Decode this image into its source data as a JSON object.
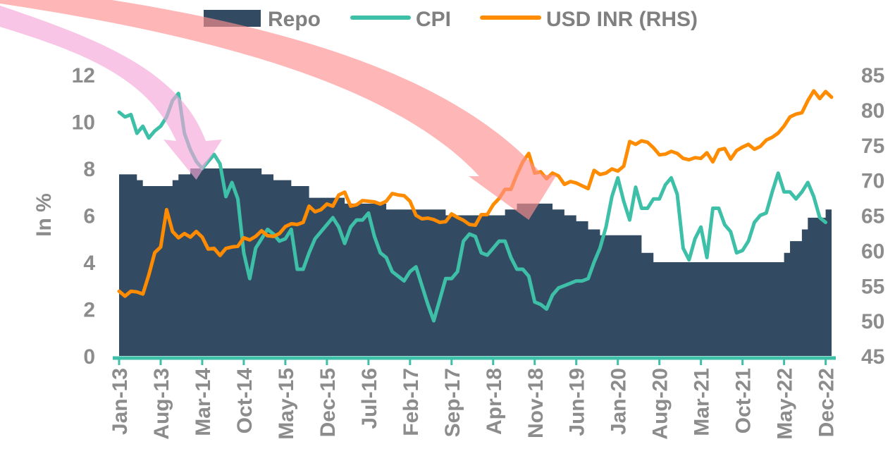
{
  "chart_data": {
    "type": "area+line",
    "legend": {
      "placement": "top-center",
      "items": [
        {
          "key": "repo",
          "label": "Repo"
        },
        {
          "key": "cpi",
          "label": "CPI"
        },
        {
          "key": "usdinr",
          "label": "USD INR (RHS)"
        }
      ]
    },
    "ylabel": "In %",
    "y_left": {
      "min": 0,
      "max": 12,
      "ticks": [
        "0",
        "2",
        "4",
        "6",
        "8",
        "10",
        "12"
      ]
    },
    "y_right": {
      "min": 45,
      "max": 85,
      "ticks": [
        "45",
        "50",
        "55",
        "60",
        "65",
        "70",
        "75",
        "80",
        "85"
      ]
    },
    "x_ticks": [
      {
        "label": "Jan-13",
        "index": 0
      },
      {
        "label": "Aug-13",
        "index": 7
      },
      {
        "label": "Mar-14",
        "index": 14
      },
      {
        "label": "Oct-14",
        "index": 21
      },
      {
        "label": "May-15",
        "index": 28
      },
      {
        "label": "Dec-15",
        "index": 35
      },
      {
        "label": "Jul-16",
        "index": 42
      },
      {
        "label": "Feb-17",
        "index": 49
      },
      {
        "label": "Sep-17",
        "index": 56
      },
      {
        "label": "Apr-18",
        "index": 63
      },
      {
        "label": "Nov-18",
        "index": 70
      },
      {
        "label": "Jun-19",
        "index": 77
      },
      {
        "label": "Jan-20",
        "index": 84
      },
      {
        "label": "Aug-20",
        "index": 91
      },
      {
        "label": "Mar-21",
        "index": 98
      },
      {
        "label": "Oct-21",
        "index": 105
      },
      {
        "label": "May-22",
        "index": 112
      },
      {
        "label": "Dec-22",
        "index": 119
      }
    ],
    "series": [
      {
        "name": "Repo",
        "key": "repo",
        "axis": "left",
        "kind": "step-area",
        "breakpoints": [
          [
            0,
            7.75
          ],
          [
            3,
            7.5
          ],
          [
            4,
            7.25
          ],
          [
            9,
            7.5
          ],
          [
            10,
            7.75
          ],
          [
            12,
            8.0
          ],
          [
            24,
            7.75
          ],
          [
            26,
            7.5
          ],
          [
            29,
            7.25
          ],
          [
            32,
            6.75
          ],
          [
            38,
            6.5
          ],
          [
            45,
            6.25
          ],
          [
            55,
            6.0
          ],
          [
            65,
            6.25
          ],
          [
            67,
            6.5
          ],
          [
            73,
            6.25
          ],
          [
            75,
            6.0
          ],
          [
            77,
            5.75
          ],
          [
            79,
            5.4
          ],
          [
            81,
            5.15
          ],
          [
            88,
            4.4
          ],
          [
            90,
            4.0
          ],
          [
            112,
            4.4
          ],
          [
            113,
            4.9
          ],
          [
            115,
            5.4
          ],
          [
            116,
            5.9
          ],
          [
            119,
            6.25
          ],
          [
            120,
            6.25
          ]
        ]
      },
      {
        "name": "CPI",
        "key": "cpi",
        "axis": "left",
        "anchors": [
          [
            0,
            10.4
          ],
          [
            1,
            10.2
          ],
          [
            2,
            10.3
          ],
          [
            3,
            9.5
          ],
          [
            4,
            9.8
          ],
          [
            5,
            9.3
          ],
          [
            6,
            9.6
          ],
          [
            7,
            9.8
          ],
          [
            8,
            10.2
          ],
          [
            9,
            10.9
          ],
          [
            10,
            11.2
          ],
          [
            11,
            9.5
          ],
          [
            12,
            8.8
          ],
          [
            13,
            8.3
          ],
          [
            14,
            8.0
          ],
          [
            15,
            8.3
          ],
          [
            16,
            8.6
          ],
          [
            17,
            8.2
          ],
          [
            18,
            6.8
          ],
          [
            19,
            7.4
          ],
          [
            20,
            6.7
          ],
          [
            21,
            4.4
          ],
          [
            22,
            3.3
          ],
          [
            23,
            4.6
          ],
          [
            24,
            5.0
          ],
          [
            25,
            5.4
          ],
          [
            26,
            5.2
          ],
          [
            27,
            4.9
          ],
          [
            28,
            5.0
          ],
          [
            29,
            5.4
          ],
          [
            30,
            3.7
          ],
          [
            31,
            3.7
          ],
          [
            32,
            4.4
          ],
          [
            33,
            5.0
          ],
          [
            34,
            5.3
          ],
          [
            35,
            5.6
          ],
          [
            36,
            5.9
          ],
          [
            37,
            5.5
          ],
          [
            38,
            4.8
          ],
          [
            39,
            5.5
          ],
          [
            40,
            5.8
          ],
          [
            41,
            5.8
          ],
          [
            42,
            6.1
          ],
          [
            43,
            5.1
          ],
          [
            44,
            4.4
          ],
          [
            45,
            4.2
          ],
          [
            46,
            3.6
          ],
          [
            47,
            3.4
          ],
          [
            48,
            3.2
          ],
          [
            49,
            3.6
          ],
          [
            50,
            3.8
          ],
          [
            51,
            3.0
          ],
          [
            52,
            2.2
          ],
          [
            53,
            1.5
          ],
          [
            54,
            2.4
          ],
          [
            55,
            3.3
          ],
          [
            56,
            3.3
          ],
          [
            57,
            3.6
          ],
          [
            58,
            4.9
          ],
          [
            59,
            5.2
          ],
          [
            60,
            5.1
          ],
          [
            61,
            4.4
          ],
          [
            62,
            4.3
          ],
          [
            63,
            4.6
          ],
          [
            64,
            4.9
          ],
          [
            65,
            4.9
          ],
          [
            66,
            4.2
          ],
          [
            67,
            3.7
          ],
          [
            68,
            3.7
          ],
          [
            69,
            3.4
          ],
          [
            70,
            2.3
          ],
          [
            71,
            2.2
          ],
          [
            72,
            2.0
          ],
          [
            73,
            2.6
          ],
          [
            74,
            2.9
          ],
          [
            75,
            3.0
          ],
          [
            76,
            3.1
          ],
          [
            77,
            3.2
          ],
          [
            78,
            3.2
          ],
          [
            79,
            3.3
          ],
          [
            80,
            4.0
          ],
          [
            81,
            4.6
          ],
          [
            82,
            5.5
          ],
          [
            83,
            6.8
          ],
          [
            84,
            7.6
          ],
          [
            85,
            6.6
          ],
          [
            86,
            5.8
          ],
          [
            87,
            7.2
          ],
          [
            88,
            6.3
          ],
          [
            89,
            6.3
          ],
          [
            90,
            6.7
          ],
          [
            91,
            6.7
          ],
          [
            92,
            7.3
          ],
          [
            93,
            7.6
          ],
          [
            94,
            6.9
          ],
          [
            95,
            4.6
          ],
          [
            96,
            4.1
          ],
          [
            97,
            5.0
          ],
          [
            98,
            5.5
          ],
          [
            99,
            4.2
          ],
          [
            100,
            6.3
          ],
          [
            101,
            6.3
          ],
          [
            102,
            5.6
          ],
          [
            103,
            5.3
          ],
          [
            104,
            4.4
          ],
          [
            105,
            4.5
          ],
          [
            106,
            4.9
          ],
          [
            107,
            5.7
          ],
          [
            108,
            6.0
          ],
          [
            109,
            6.1
          ],
          [
            110,
            7.0
          ],
          [
            111,
            7.8
          ],
          [
            112,
            7.0
          ],
          [
            113,
            7.0
          ],
          [
            114,
            6.7
          ],
          [
            115,
            7.0
          ],
          [
            116,
            7.4
          ],
          [
            117,
            6.8
          ],
          [
            118,
            5.9
          ],
          [
            119,
            5.7
          ]
        ]
      },
      {
        "name": "USD INR (RHS)",
        "key": "usdinr",
        "axis": "right",
        "anchors": [
          [
            0,
            54.2
          ],
          [
            1,
            53.5
          ],
          [
            2,
            54.2
          ],
          [
            3,
            54.1
          ],
          [
            4,
            53.8
          ],
          [
            5,
            56.5
          ],
          [
            6,
            59.7
          ],
          [
            7,
            60.5
          ],
          [
            8,
            65.8
          ],
          [
            9,
            62.7
          ],
          [
            10,
            61.8
          ],
          [
            11,
            62.4
          ],
          [
            12,
            61.9
          ],
          [
            13,
            62.7
          ],
          [
            14,
            61.9
          ],
          [
            15,
            60.2
          ],
          [
            16,
            60.3
          ],
          [
            17,
            59.3
          ],
          [
            18,
            60.3
          ],
          [
            19,
            60.5
          ],
          [
            20,
            60.6
          ],
          [
            21,
            61.8
          ],
          [
            22,
            61.5
          ],
          [
            23,
            62.0
          ],
          [
            24,
            62.8
          ],
          [
            25,
            62.1
          ],
          [
            26,
            62.0
          ],
          [
            27,
            62.4
          ],
          [
            28,
            63.4
          ],
          [
            29,
            63.8
          ],
          [
            30,
            63.7
          ],
          [
            31,
            64.0
          ],
          [
            32,
            66.3
          ],
          [
            33,
            65.5
          ],
          [
            34,
            65.8
          ],
          [
            35,
            66.6
          ],
          [
            36,
            66.3
          ],
          [
            37,
            67.9
          ],
          [
            38,
            68.3
          ],
          [
            39,
            66.3
          ],
          [
            40,
            66.5
          ],
          [
            41,
            67.1
          ],
          [
            42,
            67.0
          ],
          [
            43,
            66.9
          ],
          [
            44,
            66.6
          ],
          [
            45,
            67.0
          ],
          [
            46,
            68.1
          ],
          [
            47,
            67.9
          ],
          [
            48,
            67.8
          ],
          [
            49,
            67.0
          ],
          [
            50,
            65.0
          ],
          [
            51,
            64.5
          ],
          [
            52,
            64.6
          ],
          [
            53,
            64.4
          ],
          [
            54,
            64.0
          ],
          [
            55,
            64.1
          ],
          [
            56,
            65.2
          ],
          [
            57,
            64.7
          ],
          [
            58,
            64.3
          ],
          [
            59,
            63.7
          ],
          [
            60,
            63.6
          ],
          [
            61,
            65.1
          ],
          [
            62,
            65.1
          ],
          [
            63,
            66.5
          ],
          [
            64,
            67.4
          ],
          [
            65,
            68.7
          ],
          [
            66,
            68.7
          ],
          [
            67,
            70.8
          ],
          [
            68,
            72.6
          ],
          [
            69,
            73.8
          ],
          [
            70,
            71.0
          ],
          [
            71,
            71.2
          ],
          [
            72,
            70.2
          ],
          [
            73,
            71.0
          ],
          [
            74,
            70.6
          ],
          [
            75,
            69.4
          ],
          [
            76,
            69.8
          ],
          [
            77,
            69.6
          ],
          [
            78,
            69.2
          ],
          [
            79,
            68.8
          ],
          [
            80,
            71.4
          ],
          [
            81,
            70.8
          ],
          [
            82,
            71.0
          ],
          [
            83,
            71.6
          ],
          [
            84,
            71.3
          ],
          [
            85,
            72.0
          ],
          [
            86,
            75.5
          ],
          [
            87,
            75.1
          ],
          [
            88,
            75.6
          ],
          [
            89,
            75.4
          ],
          [
            90,
            74.6
          ],
          [
            91,
            73.6
          ],
          [
            92,
            73.7
          ],
          [
            93,
            74.1
          ],
          [
            94,
            73.8
          ],
          [
            95,
            73.1
          ],
          [
            96,
            72.9
          ],
          [
            97,
            73.2
          ],
          [
            98,
            73.1
          ],
          [
            99,
            73.9
          ],
          [
            100,
            72.6
          ],
          [
            101,
            74.3
          ],
          [
            102,
            74.5
          ],
          [
            103,
            73.0
          ],
          [
            104,
            74.2
          ],
          [
            105,
            74.7
          ],
          [
            106,
            75.1
          ],
          [
            107,
            74.4
          ],
          [
            108,
            74.8
          ],
          [
            109,
            75.7
          ],
          [
            110,
            76.1
          ],
          [
            111,
            76.7
          ],
          [
            112,
            77.7
          ],
          [
            113,
            79.0
          ],
          [
            114,
            79.4
          ],
          [
            115,
            79.6
          ],
          [
            116,
            81.3
          ],
          [
            117,
            82.7
          ],
          [
            118,
            81.6
          ],
          [
            119,
            82.6
          ],
          [
            120,
            81.8
          ]
        ]
      }
    ],
    "annotations": [
      {
        "type": "curved-arrow",
        "color": "pink",
        "target_index": 13
      },
      {
        "type": "curved-arrow",
        "color": "red",
        "target_index": 69
      }
    ],
    "colors": {
      "repo": "#324b63",
      "cpi": "#3dbfa8",
      "usdinr": "#ff8c00",
      "tick": "#8c8c8c",
      "legend_text": "#808080",
      "arrow_pink": "#f5a6d8",
      "arrow_red": "#ff8f8f"
    }
  }
}
